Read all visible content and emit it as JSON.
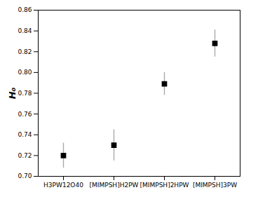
{
  "chart_data": {
    "type": "errorbar",
    "categories": [
      "H3PW12O40",
      "[MIMPSH]H2PW",
      "[MIMPSH]2HPW",
      "[MIMPSH]3PW"
    ],
    "values": [
      0.72,
      0.73,
      0.789,
      0.828
    ],
    "errors": [
      0.012,
      0.015,
      0.011,
      0.013
    ],
    "ylabel": "H₀",
    "ylim": [
      0.7,
      0.86
    ],
    "yticks": [
      {
        "value": 0.7,
        "label": "0.70"
      },
      0.72,
      0.74,
      0.76,
      0.78,
      {
        "value": 0.8,
        "label": "0.80"
      },
      0.82,
      0.84,
      0.86
    ],
    "color": "#000000",
    "error_color": "#aaaaaa",
    "marker": "square"
  }
}
